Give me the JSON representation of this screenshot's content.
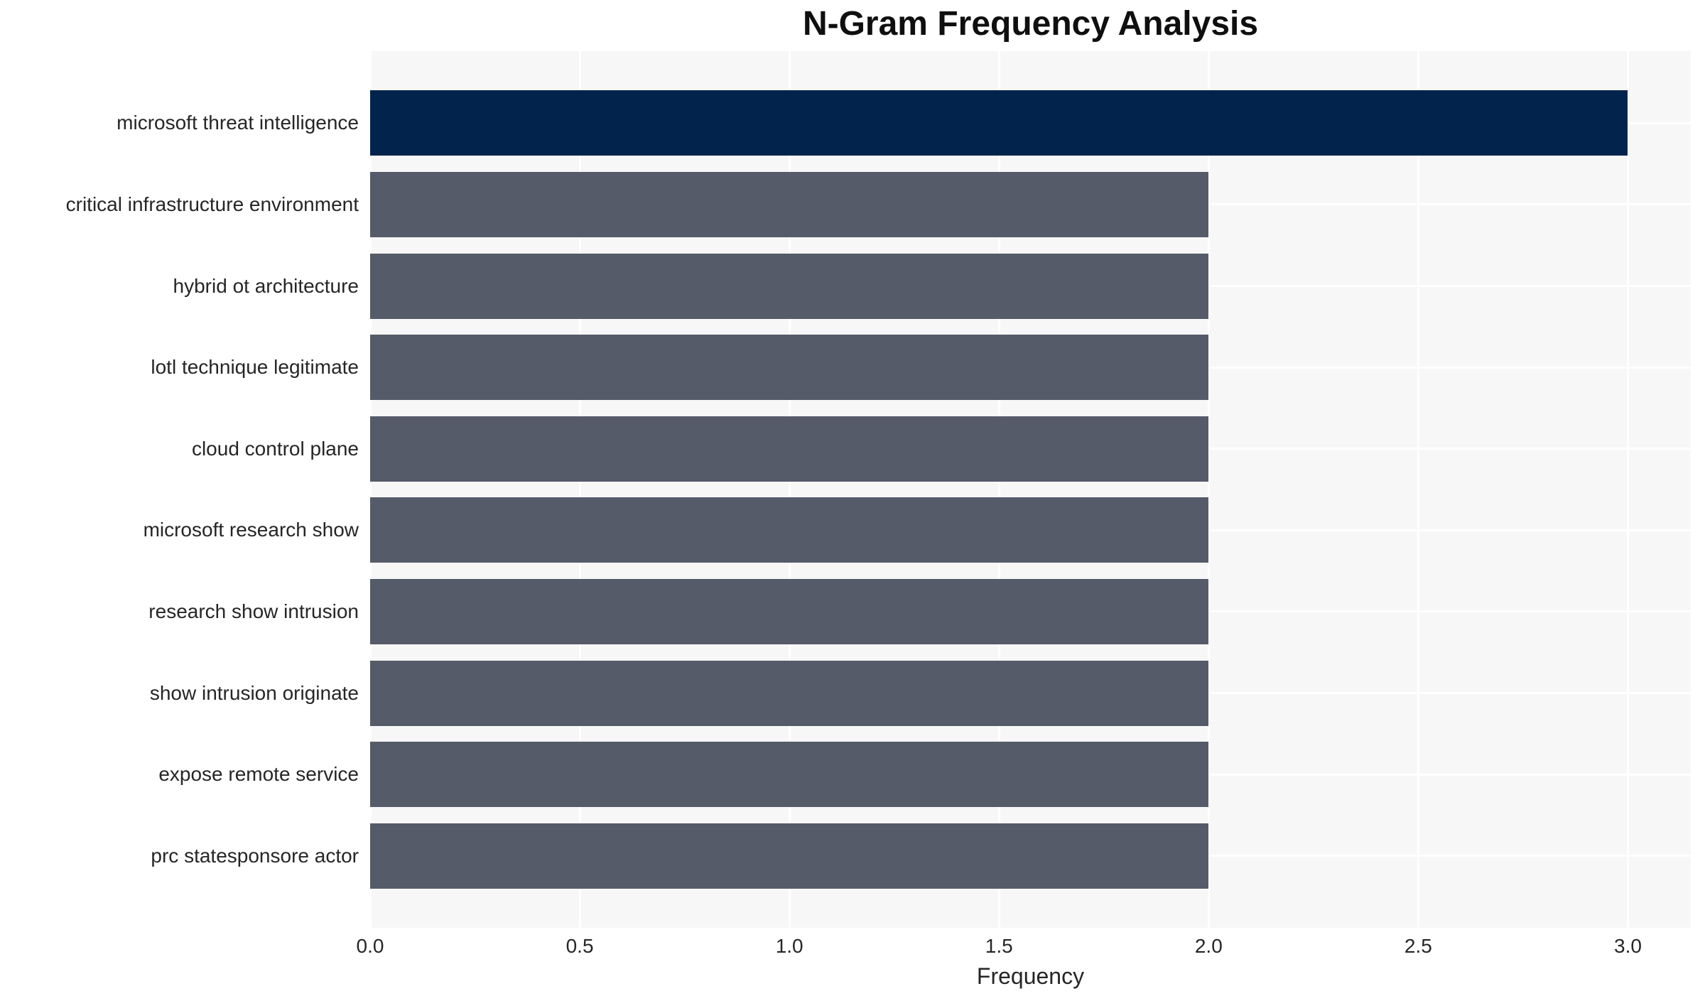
{
  "chart_data": {
    "type": "bar",
    "orientation": "horizontal",
    "title": "N-Gram Frequency Analysis",
    "xlabel": "Frequency",
    "ylabel": "",
    "categories": [
      "microsoft threat intelligence",
      "critical infrastructure environment",
      "hybrid ot architecture",
      "lotl technique legitimate",
      "cloud control plane",
      "microsoft research show",
      "research show intrusion",
      "show intrusion originate",
      "expose remote service",
      "prc statesponsore actor"
    ],
    "values": [
      3.0,
      2.0,
      2.0,
      2.0,
      2.0,
      2.0,
      2.0,
      2.0,
      2.0,
      2.0
    ],
    "xlim": [
      0,
      3.15
    ],
    "xticks": [
      0.0,
      0.5,
      1.0,
      1.5,
      2.0,
      2.5,
      3.0
    ],
    "xtick_labels": [
      "0.0",
      "0.5",
      "1.0",
      "1.5",
      "2.0",
      "2.5",
      "3.0"
    ],
    "grid": true,
    "legend_position": "none",
    "colors": {
      "highlight_bar": "#02234c",
      "bar": "#565b6a",
      "plot_background": "#f7f7f8",
      "grid_line": "#ffffff",
      "tick_text": "#262626",
      "title_text": "#0f0f0f"
    }
  }
}
